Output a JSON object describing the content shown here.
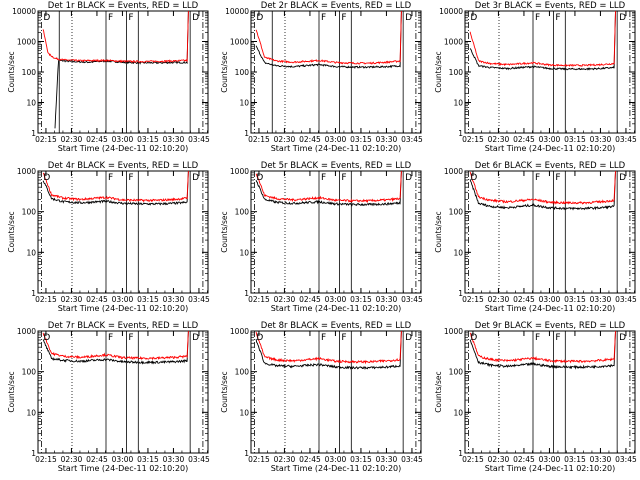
{
  "colors": {
    "events": "#000000",
    "lld": "#ff0000",
    "background": "#ffffff",
    "axes": "#000000"
  },
  "x_tick_labels": [
    "02:15",
    "02:30",
    "02:45",
    "03:00",
    "03:15",
    "03:30",
    "03:45"
  ],
  "xlabel": "Start Time (24-Dec-11 02:10:20)",
  "ylabel": "Counts/sec",
  "chart_data": [
    {
      "type": "line",
      "title": "Det 1r BLACK = Events, RED = LLD",
      "ylim": [
        1,
        10000
      ],
      "ylog": true,
      "y_tick_labels": [
        "1",
        "10",
        "100",
        "1000",
        "10000"
      ],
      "series": [
        {
          "name": "Events",
          "x": [
            10,
            12,
            20,
            30,
            40,
            50,
            60,
            70,
            80,
            88
          ],
          "y": [
            1.5,
            240,
            220,
            210,
            230,
            210,
            200,
            200,
            205,
            205
          ]
        },
        {
          "name": "LLD",
          "x": [
            3,
            6,
            10,
            15,
            25,
            40,
            50,
            60,
            80,
            88
          ],
          "y": [
            2500,
            400,
            280,
            250,
            235,
            240,
            225,
            220,
            230,
            240
          ]
        }
      ],
      "markers": [
        {
          "label": "D",
          "t": 2
        },
        {
          "label": "F",
          "t": 40
        },
        {
          "label": "F",
          "t": 52
        },
        {
          "label": "D",
          "t": 89.5
        }
      ],
      "vlines_solid": [
        12.5,
        40,
        52,
        59,
        89.5
      ],
      "vlines_dotted": [
        20
      ],
      "vlines_dashdot": [
        2,
        97
      ]
    },
    {
      "type": "line",
      "title": "Det 2r BLACK = Events, RED = LLD",
      "ylim": [
        1,
        10000
      ],
      "ylog": true,
      "y_tick_labels": [
        "1",
        "10",
        "100",
        "1000",
        "10000"
      ],
      "series": [
        {
          "name": "Events",
          "x": [
            3,
            8,
            15,
            25,
            40,
            50,
            60,
            70,
            80,
            88
          ],
          "y": [
            700,
            200,
            160,
            150,
            175,
            150,
            145,
            145,
            150,
            160
          ]
        },
        {
          "name": "LLD",
          "x": [
            3,
            8,
            15,
            25,
            40,
            50,
            60,
            70,
            80,
            88
          ],
          "y": [
            2500,
            300,
            230,
            210,
            240,
            205,
            195,
            195,
            210,
            230
          ]
        }
      ],
      "markers": [
        {
          "label": "D",
          "t": 2
        },
        {
          "label": "F",
          "t": 40
        },
        {
          "label": "F",
          "t": 52
        },
        {
          "label": "D",
          "t": 89.5
        }
      ],
      "vlines_solid": [
        12.5,
        40,
        52,
        59,
        89.5
      ],
      "vlines_dotted": [
        20
      ],
      "vlines_dashdot": [
        2,
        97
      ]
    },
    {
      "type": "line",
      "title": "Det 3r BLACK = Events, RED = LLD",
      "ylim": [
        1,
        10000
      ],
      "ylog": true,
      "y_tick_labels": [
        "1",
        "10",
        "100",
        "1000",
        "10000"
      ],
      "series": [
        {
          "name": "Events",
          "x": [
            3,
            8,
            15,
            25,
            40,
            50,
            60,
            70,
            80,
            88
          ],
          "y": [
            600,
            160,
            140,
            130,
            150,
            130,
            125,
            125,
            130,
            140
          ]
        },
        {
          "name": "LLD",
          "x": [
            3,
            8,
            15,
            25,
            40,
            50,
            60,
            70,
            80,
            88
          ],
          "y": [
            2000,
            230,
            190,
            175,
            200,
            170,
            165,
            165,
            175,
            190
          ]
        }
      ],
      "markers": [
        {
          "label": "D",
          "t": 2
        },
        {
          "label": "F",
          "t": 40
        },
        {
          "label": "F",
          "t": 52
        },
        {
          "label": "D",
          "t": 89.5
        }
      ],
      "vlines_solid": [
        40,
        52,
        59,
        89.5
      ],
      "vlines_dotted": [
        20
      ],
      "vlines_dashdot": [
        2,
        97
      ]
    },
    {
      "type": "line",
      "title": "Det 4r BLACK = Events, RED = LLD",
      "ylim": [
        1,
        1000
      ],
      "ylog": true,
      "y_tick_labels": [
        "1",
        "10",
        "100",
        "1000"
      ],
      "series": [
        {
          "name": "Events",
          "x": [
            3,
            8,
            15,
            25,
            40,
            50,
            60,
            70,
            80,
            88
          ],
          "y": [
            600,
            210,
            175,
            165,
            180,
            160,
            155,
            155,
            160,
            170
          ]
        },
        {
          "name": "LLD",
          "x": [
            3,
            8,
            15,
            25,
            40,
            50,
            60,
            70,
            80,
            88
          ],
          "y": [
            900,
            260,
            215,
            200,
            225,
            195,
            190,
            190,
            200,
            215
          ]
        }
      ],
      "markers": [
        {
          "label": "D",
          "t": 2
        },
        {
          "label": "F",
          "t": 40
        },
        {
          "label": "F",
          "t": 52
        },
        {
          "label": "D",
          "t": 89.5
        }
      ],
      "vlines_solid": [
        40,
        52,
        59,
        89.5
      ],
      "vlines_dotted": [
        20
      ],
      "vlines_dashdot": [
        2,
        97
      ]
    },
    {
      "type": "line",
      "title": "Det 5r BLACK = Events, RED = LLD",
      "ylim": [
        1,
        1000
      ],
      "ylog": true,
      "y_tick_labels": [
        "1",
        "10",
        "100",
        "1000"
      ],
      "series": [
        {
          "name": "Events",
          "x": [
            3,
            8,
            15,
            25,
            40,
            50,
            60,
            70,
            80,
            88
          ],
          "y": [
            600,
            200,
            170,
            160,
            175,
            155,
            150,
            150,
            155,
            165
          ]
        },
        {
          "name": "LLD",
          "x": [
            3,
            8,
            15,
            25,
            40,
            50,
            60,
            70,
            80,
            88
          ],
          "y": [
            900,
            250,
            210,
            195,
            220,
            190,
            185,
            185,
            195,
            210
          ]
        }
      ],
      "markers": [
        {
          "label": "D",
          "t": 2
        },
        {
          "label": "F",
          "t": 40
        },
        {
          "label": "F",
          "t": 52
        },
        {
          "label": "D",
          "t": 89.5
        }
      ],
      "vlines_solid": [
        40,
        52,
        59,
        89.5
      ],
      "vlines_dotted": [
        20
      ],
      "vlines_dashdot": [
        2,
        97
      ]
    },
    {
      "type": "line",
      "title": "Det 6r BLACK = Events, RED = LLD",
      "ylim": [
        1,
        1000
      ],
      "ylog": true,
      "y_tick_labels": [
        "1",
        "10",
        "100",
        "1000"
      ],
      "series": [
        {
          "name": "Events",
          "x": [
            3,
            8,
            15,
            25,
            40,
            50,
            60,
            70,
            80,
            88
          ],
          "y": [
            600,
            160,
            135,
            125,
            145,
            125,
            120,
            120,
            125,
            135
          ]
        },
        {
          "name": "LLD",
          "x": [
            3,
            8,
            15,
            25,
            40,
            50,
            60,
            70,
            80,
            88
          ],
          "y": [
            900,
            230,
            190,
            175,
            200,
            170,
            165,
            165,
            175,
            190
          ]
        }
      ],
      "markers": [
        {
          "label": "D",
          "t": 2
        },
        {
          "label": "F",
          "t": 40
        },
        {
          "label": "F",
          "t": 52
        },
        {
          "label": "D",
          "t": 89.5
        }
      ],
      "vlines_solid": [
        40,
        52,
        59,
        89.5
      ],
      "vlines_dotted": [
        20
      ],
      "vlines_dashdot": [
        2,
        97
      ]
    },
    {
      "type": "line",
      "title": "Det 7r BLACK = Events, RED = LLD",
      "ylim": [
        1,
        1000
      ],
      "ylog": true,
      "y_tick_labels": [
        "1",
        "10",
        "100",
        "1000"
      ],
      "series": [
        {
          "name": "Events",
          "x": [
            3,
            8,
            15,
            25,
            40,
            50,
            60,
            70,
            80,
            88
          ],
          "y": [
            600,
            210,
            190,
            180,
            200,
            175,
            170,
            170,
            175,
            185
          ]
        },
        {
          "name": "LLD",
          "x": [
            3,
            8,
            15,
            25,
            40,
            50,
            60,
            70,
            80,
            88
          ],
          "y": [
            900,
            280,
            240,
            225,
            260,
            220,
            215,
            215,
            225,
            240
          ]
        }
      ],
      "markers": [
        {
          "label": "D",
          "t": 2
        },
        {
          "label": "F",
          "t": 40
        },
        {
          "label": "F",
          "t": 52
        },
        {
          "label": "D",
          "t": 89.5
        }
      ],
      "vlines_solid": [
        40,
        52,
        59,
        89.5
      ],
      "vlines_dotted": [
        20
      ],
      "vlines_dashdot": [
        2,
        97
      ]
    },
    {
      "type": "line",
      "title": "Det 8r BLACK = Events, RED = LLD",
      "ylim": [
        1,
        1000
      ],
      "ylog": true,
      "y_tick_labels": [
        "1",
        "10",
        "100",
        "1000"
      ],
      "series": [
        {
          "name": "Events",
          "x": [
            3,
            8,
            15,
            25,
            40,
            50,
            60,
            70,
            80,
            88
          ],
          "y": [
            600,
            160,
            140,
            135,
            150,
            130,
            125,
            125,
            130,
            140
          ]
        },
        {
          "name": "LLD",
          "x": [
            3,
            8,
            15,
            25,
            40,
            50,
            60,
            70,
            80,
            88
          ],
          "y": [
            900,
            230,
            195,
            185,
            210,
            180,
            175,
            175,
            185,
            200
          ]
        }
      ],
      "markers": [
        {
          "label": "D",
          "t": 2
        },
        {
          "label": "F",
          "t": 40
        },
        {
          "label": "F",
          "t": 52
        },
        {
          "label": "D",
          "t": 89.5
        }
      ],
      "vlines_solid": [
        40,
        52,
        59,
        89.5
      ],
      "vlines_dotted": [
        20
      ],
      "vlines_dashdot": [
        2,
        97
      ]
    },
    {
      "type": "line",
      "title": "Det 9r BLACK = Events, RED = LLD",
      "ylim": [
        1,
        1000
      ],
      "ylog": true,
      "y_tick_labels": [
        "1",
        "10",
        "100",
        "1000"
      ],
      "series": [
        {
          "name": "Events",
          "x": [
            3,
            8,
            15,
            25,
            40,
            50,
            60,
            70,
            80,
            88
          ],
          "y": [
            600,
            170,
            145,
            135,
            155,
            135,
            130,
            130,
            135,
            145
          ]
        },
        {
          "name": "LLD",
          "x": [
            3,
            8,
            15,
            25,
            40,
            50,
            60,
            70,
            80,
            88
          ],
          "y": [
            900,
            240,
            200,
            185,
            215,
            185,
            180,
            180,
            190,
            205
          ]
        }
      ],
      "markers": [
        {
          "label": "D",
          "t": 2
        },
        {
          "label": "F",
          "t": 40
        },
        {
          "label": "F",
          "t": 52
        },
        {
          "label": "D",
          "t": 89.5
        }
      ],
      "vlines_solid": [
        40,
        52,
        59,
        89.5
      ],
      "vlines_dotted": [
        20
      ],
      "vlines_dashdot": [
        2,
        97
      ]
    }
  ]
}
